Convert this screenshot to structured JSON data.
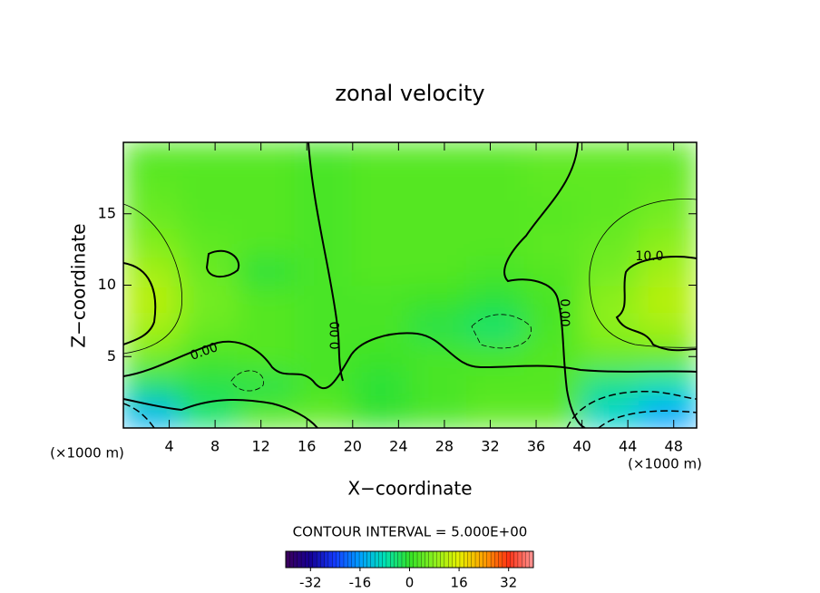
{
  "chart_data": {
    "type": "contour",
    "title": "zonal velocity",
    "x_label": "X−coordinate",
    "y_label": "Z−coordinate",
    "x_unit_label": "(×1000 m)",
    "y_unit_label": "(×1000 m)",
    "contour_interval_label": "CONTOUR INTERVAL = 5.000E+00",
    "contour_labels": [
      "0.00",
      "0.00",
      "0.00",
      "10.0"
    ],
    "x": [
      2.5,
      7.5,
      12.5,
      17.5,
      22.5,
      27.5,
      32.5,
      37.5,
      42.5,
      47.5
    ],
    "y": [
      1,
      3,
      5,
      7,
      9,
      11,
      13,
      15,
      17,
      19
    ],
    "z": [
      [
        -14,
        -4,
        3,
        4,
        0,
        2,
        4,
        4,
        -10,
        -16
      ],
      [
        -4,
        -2,
        -2,
        2,
        -1,
        2,
        3,
        3,
        -6,
        -8
      ],
      [
        6,
        2,
        3,
        2,
        1,
        2,
        2,
        3,
        5,
        5
      ],
      [
        10,
        5,
        3,
        2,
        2,
        -2,
        -4,
        2,
        8,
        10
      ],
      [
        12,
        6,
        3,
        2,
        2,
        1,
        -1,
        2,
        8,
        12
      ],
      [
        10,
        5,
        -1,
        2,
        3,
        3,
        2,
        3,
        6,
        10
      ],
      [
        7,
        4,
        3,
        2,
        3,
        3,
        3,
        4,
        5,
        8
      ],
      [
        5,
        3,
        3,
        2,
        3,
        3,
        3,
        3,
        4,
        6
      ],
      [
        4,
        3,
        3,
        2,
        3,
        3,
        3,
        4,
        4,
        5
      ],
      [
        3,
        3,
        3,
        2,
        3,
        3,
        3,
        4,
        4,
        4
      ]
    ],
    "xlim": [
      0,
      50
    ],
    "ylim": [
      0,
      20
    ],
    "xticks": [
      4,
      8,
      12,
      16,
      20,
      24,
      28,
      32,
      36,
      40,
      44,
      48
    ],
    "yticks": [
      5,
      10,
      15
    ],
    "clim": [
      -40,
      40
    ],
    "colorbar_ticks": [
      -32,
      -16,
      0,
      16,
      32
    ]
  }
}
